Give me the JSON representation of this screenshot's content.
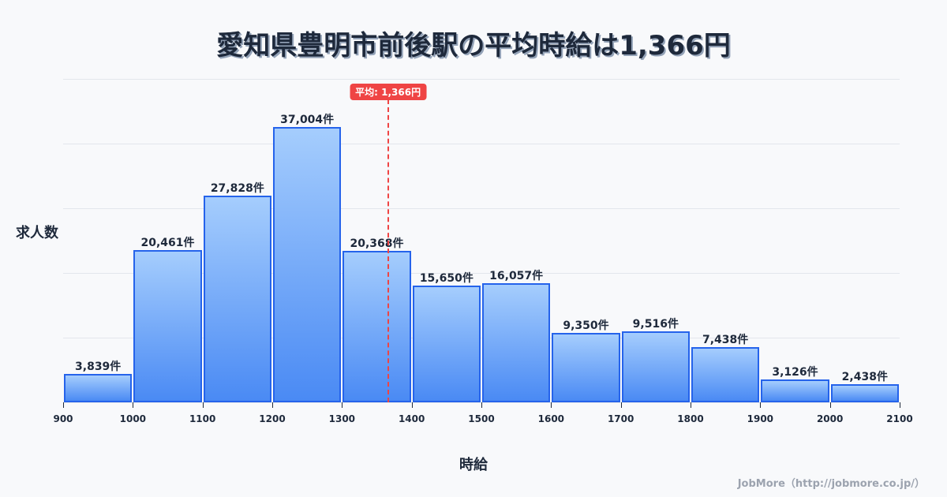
{
  "title": "愛知県豊明市前後駅の平均時給は1,366円",
  "y_axis_label": "求人数",
  "x_axis_label": "時給",
  "credit": "JobMore（http://jobmore.co.jp/）",
  "average": {
    "value": 1366,
    "label": "平均: 1,366円",
    "color": "#ef4444"
  },
  "colors": {
    "bar_border": "#2563eb",
    "bar_top": "#a5cdfd",
    "bar_bottom": "#4a8af4",
    "text": "#1e293b"
  },
  "chart_data": {
    "type": "bar",
    "title": "愛知県豊明市前後駅の平均時給は1,366円",
    "xlabel": "時給",
    "ylabel": "求人数",
    "bins": [
      [
        900,
        1000
      ],
      [
        1000,
        1100
      ],
      [
        1100,
        1200
      ],
      [
        1200,
        1300
      ],
      [
        1300,
        1400
      ],
      [
        1400,
        1500
      ],
      [
        1500,
        1600
      ],
      [
        1600,
        1700
      ],
      [
        1700,
        1800
      ],
      [
        1800,
        1900
      ],
      [
        1900,
        2000
      ],
      [
        2000,
        2100
      ]
    ],
    "categories": [
      "900-1000",
      "1000-1100",
      "1100-1200",
      "1200-1300",
      "1300-1400",
      "1400-1500",
      "1500-1600",
      "1600-1700",
      "1700-1800",
      "1800-1900",
      "1900-2000",
      "2000-2100"
    ],
    "values": [
      3839,
      20461,
      27828,
      37004,
      20368,
      15650,
      16057,
      9350,
      9516,
      7438,
      3126,
      2438
    ],
    "value_labels": [
      "3,839件",
      "20,461件",
      "27,828件",
      "37,004件",
      "20,368件",
      "15,650件",
      "16,057件",
      "9,350件",
      "9,516件",
      "7,438件",
      "3,126件",
      "2,438件"
    ],
    "x_ticks": [
      900,
      1000,
      1100,
      1200,
      1300,
      1400,
      1500,
      1600,
      1700,
      1800,
      1900,
      2000,
      2100
    ],
    "xlim": [
      900,
      2100
    ],
    "ylim": [
      0,
      43500
    ],
    "grid": true,
    "annotations": [
      {
        "type": "vline",
        "x": 1366,
        "label": "平均: 1,366円"
      }
    ]
  }
}
